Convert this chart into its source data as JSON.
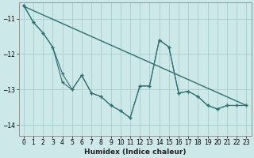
{
  "xlabel": "Humidex (Indice chaleur)",
  "background_color": "#cce8e8",
  "grid_color": "#aacccc",
  "line_color": "#2d7070",
  "xlim": [
    -0.5,
    23.5
  ],
  "ylim": [
    -14.3,
    -10.55
  ],
  "yticks": [
    -14,
    -13,
    -12,
    -11
  ],
  "xticks": [
    0,
    1,
    2,
    3,
    4,
    5,
    6,
    7,
    8,
    9,
    10,
    11,
    12,
    13,
    14,
    15,
    16,
    17,
    18,
    19,
    20,
    21,
    22,
    23
  ],
  "trend_y": [
    -10.65,
    -13.45
  ],
  "jag1_y": [
    -10.62,
    -11.1,
    -11.4,
    -11.8,
    -12.8,
    -13.0,
    -12.6,
    -13.1,
    -13.2,
    -13.45,
    -13.6,
    -13.8,
    -12.9,
    -12.9,
    -11.6,
    -11.8,
    -13.1,
    -13.05,
    -13.2,
    -13.45,
    -13.55,
    -13.45,
    -13.45,
    -13.45
  ],
  "jag2_y": [
    -10.62,
    -11.1,
    -11.4,
    -11.8,
    -12.55,
    -13.0,
    -12.6,
    -13.1,
    -13.2,
    -13.45,
    -13.6,
    -13.8,
    -12.9,
    -12.9,
    -11.6,
    -11.8,
    -13.1,
    -13.05,
    -13.2,
    -13.45,
    -13.55,
    -13.45,
    -13.45,
    -13.45
  ]
}
